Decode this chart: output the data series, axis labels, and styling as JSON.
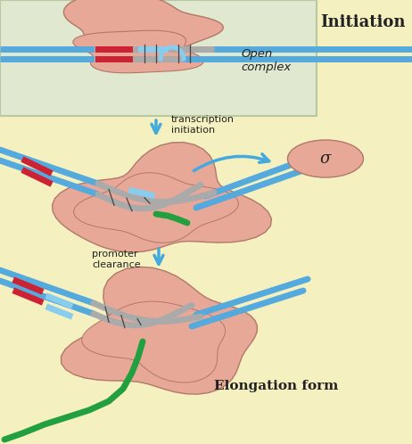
{
  "bg_main": "#f5f0c0",
  "bg_top": "#e0e8d0",
  "protein_color": "#e8a898",
  "protein_outline": "#b07868",
  "dna_blue": "#55aadd",
  "dna_gray": "#aaaaaa",
  "red_mark": "#cc2233",
  "light_blue_mark": "#88ccee",
  "green_rna": "#22a040",
  "arrow_color": "#44aadd",
  "sigma_fill": "#e8a898",
  "text_color": "#222222",
  "title": "Initiation",
  "label_open": "Open\ncomplex",
  "label_ti": "transcription\ninitiation",
  "label_pc": "promoter\nclearance",
  "label_elong": "Elongation form",
  "sigma_label": "σ"
}
